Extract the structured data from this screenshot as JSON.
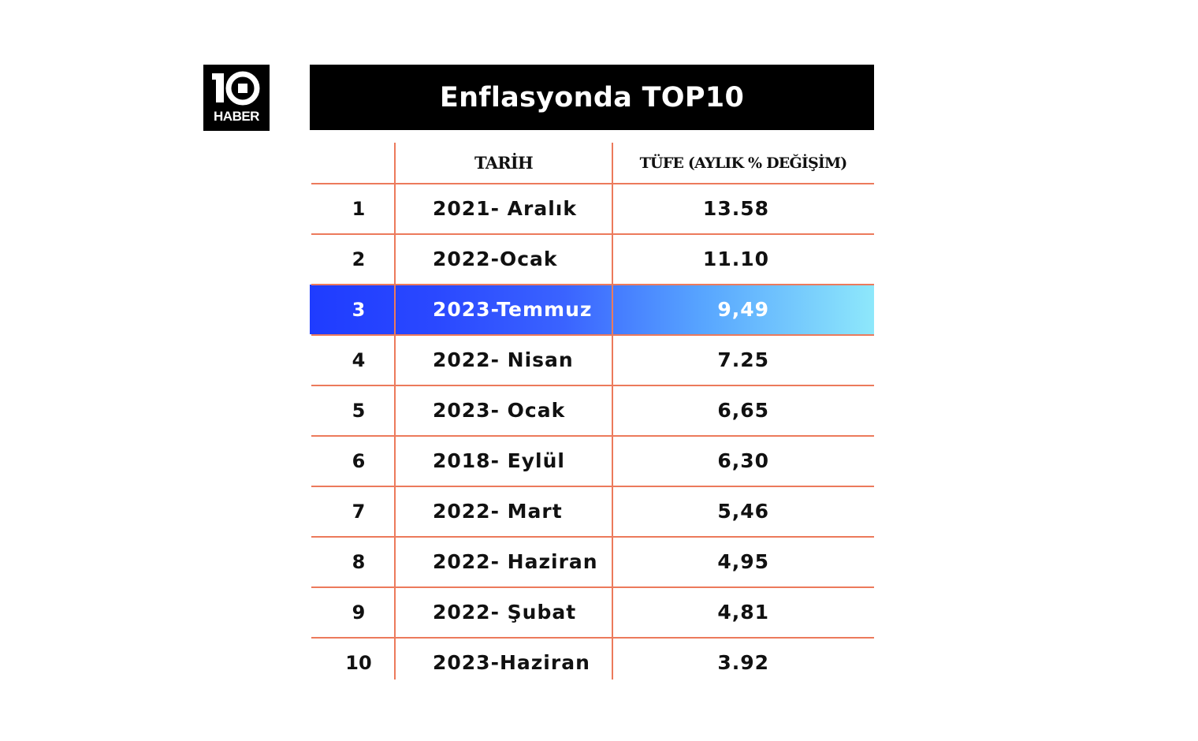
{
  "logo": {
    "number": "10",
    "label": "HABER"
  },
  "title": "Enflasyonda TOP10",
  "table": {
    "headers": {
      "rank": "",
      "date": "TARİH",
      "value": "TÜFE (AYLIK % DEĞİŞİM)"
    },
    "rows": [
      {
        "rank": "1",
        "date": "2021- Aralık",
        "value": "13.58"
      },
      {
        "rank": "2",
        "date": "2022-Ocak",
        "value": "11.10"
      },
      {
        "rank": "3",
        "date": "2023-Temmuz",
        "value": "9,49",
        "highlighted": true
      },
      {
        "rank": "4",
        "date": "2022- Nisan",
        "value": "7.25"
      },
      {
        "rank": "5",
        "date": "2023- Ocak",
        "value": "6,65"
      },
      {
        "rank": "6",
        "date": "2018- Eylül",
        "value": "6,30"
      },
      {
        "rank": "7",
        "date": "2022- Mart",
        "value": "5,46"
      },
      {
        "rank": "8",
        "date": "2022- Haziran",
        "value": "4,95"
      },
      {
        "rank": "9",
        "date": "2022- Şubat",
        "value": "4,81"
      },
      {
        "rank": "10",
        "date": "2023-Haziran",
        "value": "3.92"
      }
    ]
  },
  "colors": {
    "grid_line": "#ec7a5c",
    "title_background": "#000000",
    "highlight_start": "#1f3cff",
    "highlight_end": "#8ee8fb"
  },
  "icons": {
    "logo": "ten-haber-logo"
  }
}
